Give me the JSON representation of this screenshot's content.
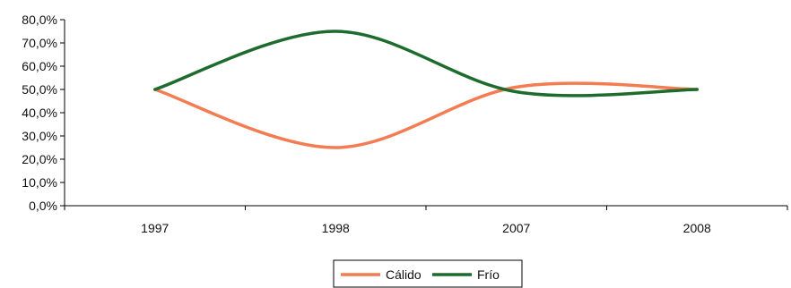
{
  "chart_data": {
    "type": "line",
    "categories": [
      "1997",
      "1998",
      "2007",
      "2008"
    ],
    "series": [
      {
        "name": "Cálido",
        "color": "#f47c52",
        "values": [
          50.0,
          25.0,
          51.0,
          50.0
        ]
      },
      {
        "name": "Frío",
        "color": "#1e6b2e",
        "values": [
          50.0,
          75.0,
          49.0,
          50.0
        ]
      }
    ],
    "ylim": [
      0,
      80
    ],
    "yticks": [
      0,
      10,
      20,
      30,
      40,
      50,
      60,
      70,
      80
    ],
    "ytick_labels": [
      "0,0%",
      "10,0%",
      "20,0%",
      "30,0%",
      "40,0%",
      "50,0%",
      "60,0%",
      "70,0%",
      "80,0%"
    ],
    "smooth": true,
    "grid": false,
    "legend_position": "bottom"
  }
}
